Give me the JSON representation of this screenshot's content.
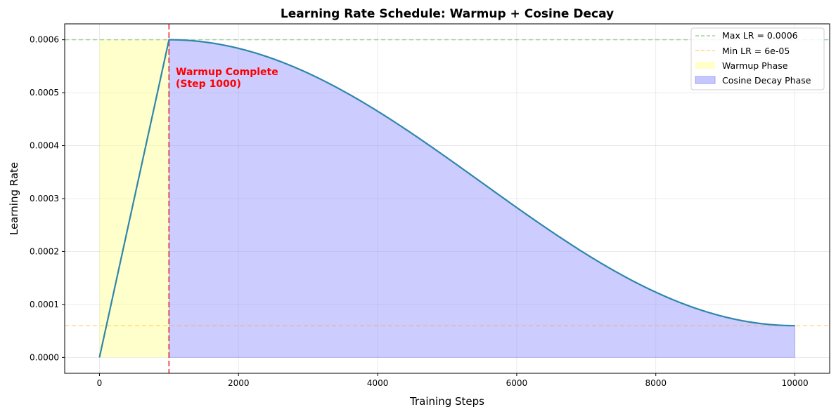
{
  "chart_data": {
    "type": "line",
    "title": "Learning Rate Schedule: Warmup + Cosine Decay",
    "xlabel": "Training Steps",
    "ylabel": "Learning Rate",
    "xlim": [
      -500,
      10500
    ],
    "ylim": [
      -3e-05,
      0.00063
    ],
    "xticks": [
      0,
      2000,
      4000,
      6000,
      8000,
      10000
    ],
    "xtick_labels": [
      "0",
      "2000",
      "4000",
      "6000",
      "8000",
      "10000"
    ],
    "yticks": [
      0,
      0.0001,
      0.0002,
      0.0003,
      0.0004,
      0.0005,
      0.0006
    ],
    "ytick_labels": [
      "0.0000",
      "0.0001",
      "0.0002",
      "0.0003",
      "0.0004",
      "0.0005",
      "0.0006"
    ],
    "grid": true,
    "schedule": {
      "max_lr": 0.0006,
      "min_lr": 6e-05,
      "warmup_steps": 1000,
      "total_steps": 10000
    },
    "series": [
      {
        "name": "Learning Rate",
        "color": "#2e86ab",
        "x": [
          0,
          1000,
          2000,
          3000,
          4000,
          5000,
          6000,
          7000,
          8000,
          9000,
          10000
        ],
        "values": [
          0.0,
          0.0006,
          0.000584,
          0.000537,
          0.000467,
          0.000383,
          0.000294,
          0.00021,
          0.000127,
          7.7e-05,
          6e-05
        ]
      }
    ],
    "reference_lines": [
      {
        "name": "max-lr-line",
        "axis": "y",
        "value": 0.0006,
        "color": "#2ca02c",
        "label": "Max LR = 0.0006"
      },
      {
        "name": "min-lr-line",
        "axis": "y",
        "value": 6e-05,
        "color": "#ffa500",
        "label": "Min LR = 6e-05"
      },
      {
        "name": "warmup-end-line",
        "axis": "x",
        "value": 1000,
        "color": "#e8191c"
      }
    ],
    "regions": [
      {
        "name": "Warmup Phase",
        "x_start": 0,
        "x_end": 1000,
        "color": "#ffff99"
      },
      {
        "name": "Cosine Decay Phase",
        "x_start": 1000,
        "x_end": 10000,
        "color": "#9999ff"
      }
    ],
    "annotation": {
      "line1": "Warmup Complete",
      "line2": "(Step 1000)",
      "x": 1100,
      "y": 0.00053,
      "color": "#ff0000"
    },
    "legend": {
      "position": "top-right",
      "entries": [
        "Max LR = 0.0006",
        "Min LR = 6e-05",
        "Warmup Phase",
        "Cosine Decay Phase"
      ]
    }
  }
}
